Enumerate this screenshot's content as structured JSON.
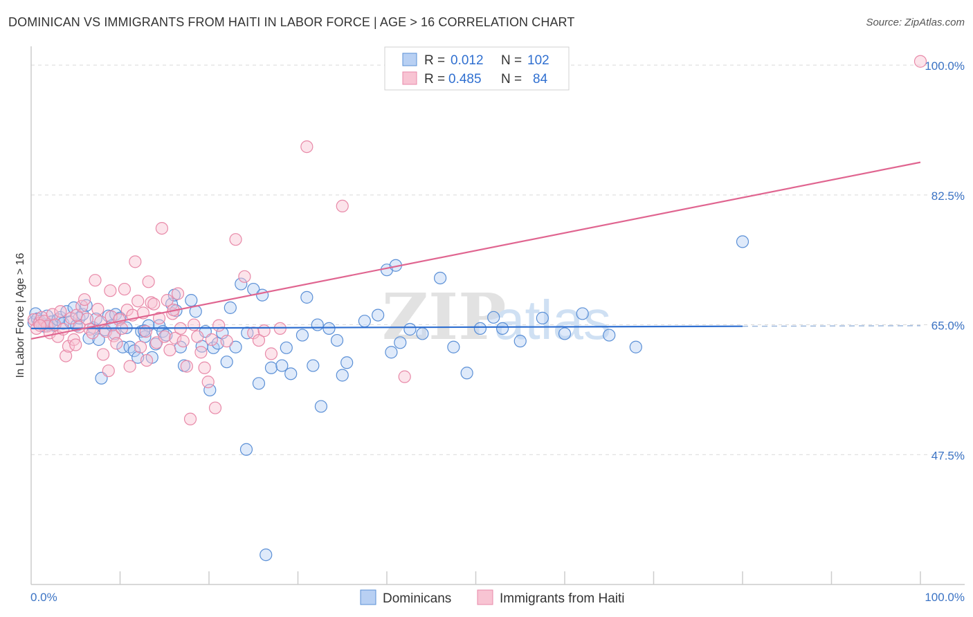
{
  "title": "DOMINICAN VS IMMIGRANTS FROM HAITI IN LABOR FORCE | AGE > 16 CORRELATION CHART",
  "source": "Source: ZipAtlas.com",
  "watermark": {
    "zip": "ZIP",
    "atlas": "atlas"
  },
  "colors": {
    "blue_fill": "#b8d0f3",
    "blue_stroke": "#5a8fd6",
    "blue_line": "#2f6fd0",
    "pink_fill": "#f8c4d3",
    "pink_stroke": "#e889a8",
    "pink_line": "#e06590",
    "tick_text": "#3b73c4",
    "grid": "#d9d9d9"
  },
  "legend": {
    "r_label": "R =",
    "n_label": "N =",
    "rows": [
      {
        "series": "Dominicans",
        "r": "0.012",
        "n": "102"
      },
      {
        "series": "Immigrants from Haiti",
        "r": "0.485",
        "n": "84"
      }
    ]
  },
  "chart_data": {
    "type": "scatter",
    "title": "DOMINICAN VS IMMIGRANTS FROM HAITI IN LABOR FORCE | AGE > 16 CORRELATION CHART",
    "xlabel": "",
    "ylabel": "In Labor Force | Age > 16",
    "x_tick_labels": [
      "0.0%",
      "100.0%"
    ],
    "y_tick_labels": [
      "100.0%",
      "82.5%",
      "65.0%",
      "47.5%"
    ],
    "y_ticks": [
      100.0,
      82.5,
      65.0,
      47.5
    ],
    "xlim": [
      0,
      100
    ],
    "ylim": [
      30,
      101.5
    ],
    "grid": true,
    "legend_position": "top-center",
    "series": [
      {
        "name": "Dominicans",
        "color": "#5a8fd6",
        "trend": {
          "x0": 0,
          "y0": 64.5,
          "x1": 80,
          "y1": 64.8,
          "dashed_to": 100
        },
        "points": [
          [
            0.3,
            65.3
          ],
          [
            0.5,
            66.5
          ],
          [
            0.7,
            65.8
          ],
          [
            1.0,
            65.5
          ],
          [
            1.2,
            65.1
          ],
          [
            1.5,
            64.8
          ],
          [
            1.8,
            66.2
          ],
          [
            2.0,
            65.0
          ],
          [
            2.3,
            65.4
          ],
          [
            2.6,
            64.9
          ],
          [
            3.0,
            65.7
          ],
          [
            3.3,
            66.0
          ],
          [
            3.6,
            65.2
          ],
          [
            4.0,
            66.8
          ],
          [
            4.4,
            65.4
          ],
          [
            4.8,
            67.3
          ],
          [
            5.1,
            64.9
          ],
          [
            5.4,
            65.9
          ],
          [
            5.8,
            66.4
          ],
          [
            6.2,
            67.6
          ],
          [
            6.5,
            63.2
          ],
          [
            7.0,
            64.6
          ],
          [
            7.3,
            65.8
          ],
          [
            7.6,
            63.0
          ],
          [
            7.9,
            57.8
          ],
          [
            8.3,
            64.3
          ],
          [
            8.7,
            66.2
          ],
          [
            9.1,
            64.9
          ],
          [
            9.5,
            66.4
          ],
          [
            10.0,
            65.9
          ],
          [
            10.3,
            62.0
          ],
          [
            10.7,
            64.6
          ],
          [
            11.1,
            62.0
          ],
          [
            11.6,
            61.5
          ],
          [
            12.0,
            60.6
          ],
          [
            12.4,
            64.1
          ],
          [
            12.8,
            63.4
          ],
          [
            13.2,
            64.9
          ],
          [
            13.6,
            60.6
          ],
          [
            14.0,
            62.4
          ],
          [
            14.4,
            64.9
          ],
          [
            14.8,
            64.1
          ],
          [
            15.2,
            63.6
          ],
          [
            15.8,
            67.8
          ],
          [
            16.3,
            66.9
          ],
          [
            16.8,
            62.0
          ],
          [
            17.2,
            59.5
          ],
          [
            18.0,
            68.3
          ],
          [
            18.5,
            66.8
          ],
          [
            19.2,
            62.1
          ],
          [
            19.6,
            64.1
          ],
          [
            20.1,
            56.2
          ],
          [
            20.5,
            61.9
          ],
          [
            21.0,
            62.5
          ],
          [
            21.5,
            63.9
          ],
          [
            22.0,
            60.0
          ],
          [
            22.4,
            67.3
          ],
          [
            23.0,
            62.0
          ],
          [
            23.6,
            70.5
          ],
          [
            24.3,
            63.9
          ],
          [
            25.0,
            69.8
          ],
          [
            25.6,
            57.1
          ],
          [
            26.0,
            69.0
          ],
          [
            26.4,
            34.0
          ],
          [
            27.0,
            59.2
          ],
          [
            28.2,
            59.5
          ],
          [
            28.7,
            61.9
          ],
          [
            29.2,
            58.4
          ],
          [
            30.5,
            63.6
          ],
          [
            31.0,
            68.7
          ],
          [
            31.7,
            59.5
          ],
          [
            32.2,
            65.0
          ],
          [
            32.6,
            54.0
          ],
          [
            33.5,
            64.5
          ],
          [
            34.4,
            62.9
          ],
          [
            35.0,
            58.2
          ],
          [
            35.5,
            59.9
          ],
          [
            37.5,
            65.5
          ],
          [
            39.0,
            66.3
          ],
          [
            40.0,
            72.4
          ],
          [
            40.5,
            61.3
          ],
          [
            41.0,
            73.0
          ],
          [
            41.5,
            62.6
          ],
          [
            42.6,
            64.4
          ],
          [
            44.0,
            63.8
          ],
          [
            46.0,
            71.3
          ],
          [
            47.5,
            62.0
          ],
          [
            49.0,
            58.5
          ],
          [
            50.5,
            64.5
          ],
          [
            52.0,
            66.0
          ],
          [
            53.0,
            64.5
          ],
          [
            55.0,
            62.8
          ],
          [
            57.5,
            65.9
          ],
          [
            60.0,
            63.8
          ],
          [
            62.0,
            66.5
          ],
          [
            65.0,
            63.6
          ],
          [
            68.0,
            62.0
          ],
          [
            80.0,
            76.2
          ],
          [
            24.2,
            48.2
          ],
          [
            16.1,
            69.0
          ],
          [
            12.7,
            64.2
          ],
          [
            9.4,
            63.8
          ]
        ]
      },
      {
        "name": "Immigrants from Haiti",
        "color": "#e889a8",
        "trend": {
          "x0": 0,
          "y0": 63.1,
          "x1": 100,
          "y1": 86.9
        },
        "points": [
          [
            0.3,
            65.7
          ],
          [
            0.6,
            64.5
          ],
          [
            0.9,
            65.2
          ],
          [
            1.2,
            66.0
          ],
          [
            1.5,
            65.5
          ],
          [
            1.8,
            64.8
          ],
          [
            2.1,
            63.9
          ],
          [
            2.4,
            66.4
          ],
          [
            2.7,
            65.0
          ],
          [
            3.0,
            63.4
          ],
          [
            3.3,
            66.8
          ],
          [
            3.6,
            64.4
          ],
          [
            3.9,
            60.8
          ],
          [
            4.2,
            62.1
          ],
          [
            4.5,
            65.9
          ],
          [
            4.8,
            63.0
          ],
          [
            5.1,
            66.3
          ],
          [
            5.4,
            64.7
          ],
          [
            5.7,
            67.5
          ],
          [
            6.0,
            68.4
          ],
          [
            6.3,
            65.8
          ],
          [
            6.6,
            64.4
          ],
          [
            6.9,
            63.9
          ],
          [
            7.2,
            71.0
          ],
          [
            7.5,
            67.1
          ],
          [
            7.8,
            65.4
          ],
          [
            8.1,
            61.0
          ],
          [
            8.4,
            64.1
          ],
          [
            8.7,
            58.8
          ],
          [
            9.0,
            66.1
          ],
          [
            9.3,
            63.5
          ],
          [
            9.6,
            62.5
          ],
          [
            9.9,
            65.7
          ],
          [
            10.2,
            64.5
          ],
          [
            10.5,
            69.8
          ],
          [
            10.8,
            67.0
          ],
          [
            11.1,
            59.4
          ],
          [
            11.4,
            66.3
          ],
          [
            11.7,
            73.5
          ],
          [
            12.0,
            68.2
          ],
          [
            12.3,
            62.0
          ],
          [
            12.6,
            66.6
          ],
          [
            12.9,
            64.1
          ],
          [
            13.2,
            70.8
          ],
          [
            13.5,
            68.0
          ],
          [
            13.8,
            67.8
          ],
          [
            14.1,
            62.6
          ],
          [
            14.4,
            65.9
          ],
          [
            14.7,
            78.0
          ],
          [
            15.0,
            63.4
          ],
          [
            15.3,
            68.3
          ],
          [
            15.6,
            61.6
          ],
          [
            15.9,
            66.5
          ],
          [
            16.2,
            63.2
          ],
          [
            16.5,
            69.2
          ],
          [
            16.8,
            64.5
          ],
          [
            17.1,
            62.8
          ],
          [
            17.5,
            59.4
          ],
          [
            17.9,
            52.3
          ],
          [
            18.3,
            65.0
          ],
          [
            18.7,
            63.4
          ],
          [
            19.1,
            61.3
          ],
          [
            19.5,
            59.2
          ],
          [
            19.9,
            57.3
          ],
          [
            20.3,
            63.0
          ],
          [
            20.7,
            53.8
          ],
          [
            21.1,
            64.9
          ],
          [
            22.0,
            62.8
          ],
          [
            23.0,
            76.5
          ],
          [
            24.0,
            71.5
          ],
          [
            25.0,
            63.9
          ],
          [
            25.6,
            62.9
          ],
          [
            26.2,
            64.2
          ],
          [
            27.0,
            61.1
          ],
          [
            28.0,
            64.5
          ],
          [
            31.0,
            89.0
          ],
          [
            35.0,
            81.0
          ],
          [
            42.0,
            58.0
          ],
          [
            100.0,
            100.5
          ],
          [
            16.0,
            67.0
          ],
          [
            13.0,
            60.2
          ],
          [
            8.9,
            69.6
          ],
          [
            5.0,
            62.3
          ],
          [
            1.0,
            64.9
          ]
        ]
      }
    ]
  }
}
